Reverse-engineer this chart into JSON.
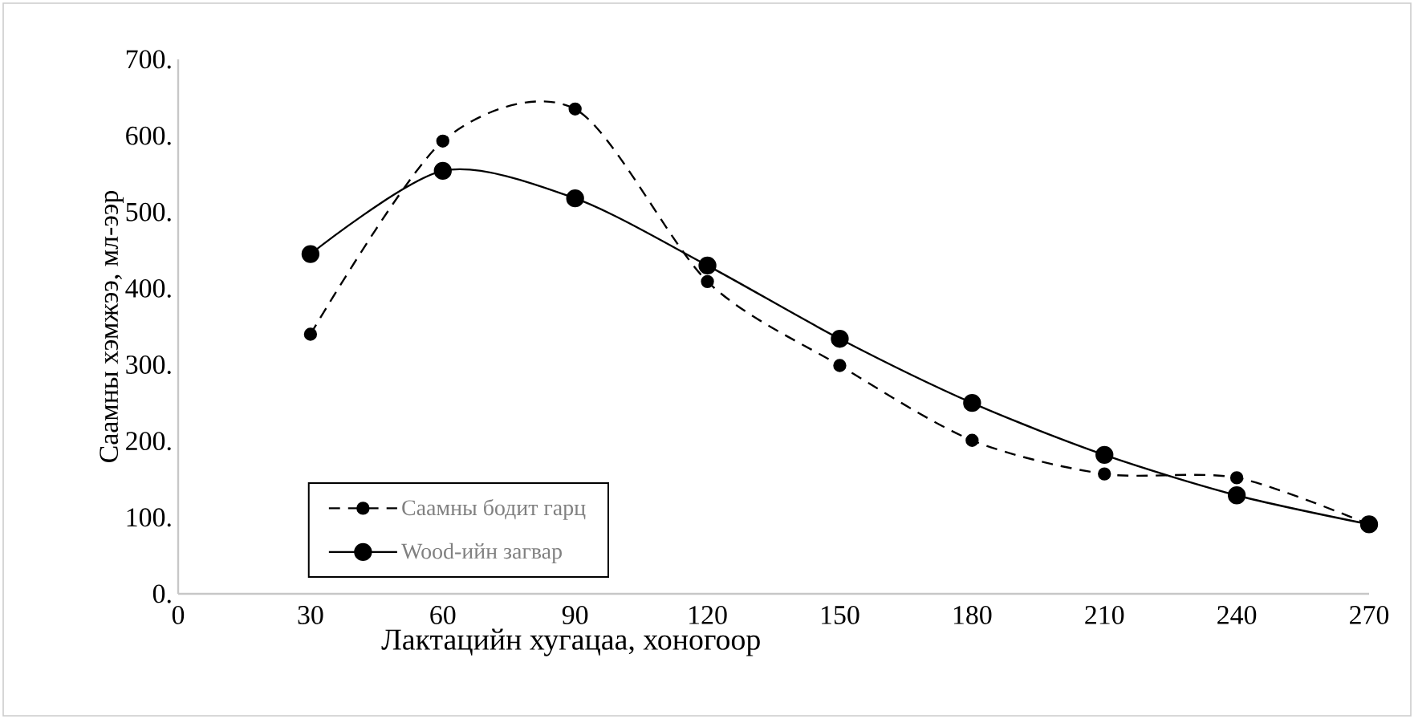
{
  "chart_data": {
    "type": "line",
    "xlabel": "Лактацийн  хугацаа, хоногоор",
    "ylabel": "Саамны хэмжээ, мл-ээр",
    "x": [
      30,
      60,
      90,
      120,
      150,
      180,
      210,
      240,
      270
    ],
    "series": [
      {
        "name": "Саамны бодит гарц",
        "color": "#000000",
        "line_style": "dashed",
        "values": [
          340,
          593,
          635,
          409,
          299,
          201,
          157,
          152,
          91
        ]
      },
      {
        "name": "Wood-ийн загвар",
        "color": "#000000",
        "line_style": "solid",
        "values": [
          445,
          554,
          518,
          430,
          334,
          250,
          182,
          129,
          91
        ]
      }
    ],
    "xlim": [
      0,
      270
    ],
    "xticks": [
      0,
      30,
      60,
      90,
      120,
      150,
      180,
      210,
      240,
      270
    ],
    "ylim": [
      0,
      700
    ],
    "yticks": [
      {
        "value": 0,
        "label": "0."
      },
      {
        "value": 100,
        "label": "100."
      },
      {
        "value": 200,
        "label": "200."
      },
      {
        "value": 300,
        "label": "300."
      },
      {
        "value": 400,
        "label": "400."
      },
      {
        "value": 500,
        "label": "500."
      },
      {
        "value": 600,
        "label": "600."
      },
      {
        "value": 700,
        "label": "700."
      }
    ],
    "marker": "circle",
    "legend": "bottom left",
    "grid": false
  }
}
